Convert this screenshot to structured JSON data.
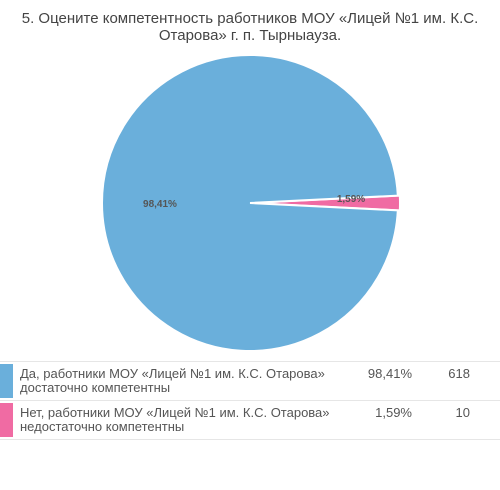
{
  "title_lines": [
    "5. Оцените компетентность работников МОУ «Лицей №1 им. К.С.",
    "Отарова» г. п. Тырныауза."
  ],
  "chart_data": {
    "type": "pie",
    "title": "5. Оцените компетентность работников МОУ «Лицей №1 им. К.С. Отарова» г. п. Тырныауза.",
    "slices": [
      {
        "label": "Да, работники МОУ «Лицей №1 им. К.С. Отарова» достаточно компетентны",
        "label_lines": [
          "Да, работники МОУ «Лицей №1 им. К.С. Отарова»",
          "достаточно компетентны"
        ],
        "percent": 98.41,
        "percent_label": "98,41%",
        "count": 618,
        "color": "#6aafdb"
      },
      {
        "label": "Нет, работники МОУ «Лицей №1 им. К.С. Отарова» недостаточно компетентны",
        "label_lines": [
          "Нет, работники МОУ «Лицей №1 им. К.С. Отарова»",
          "недостаточно компетентны"
        ],
        "percent": 1.59,
        "percent_label": "1,59%",
        "count": 10,
        "color": "#f06ba3"
      }
    ]
  }
}
